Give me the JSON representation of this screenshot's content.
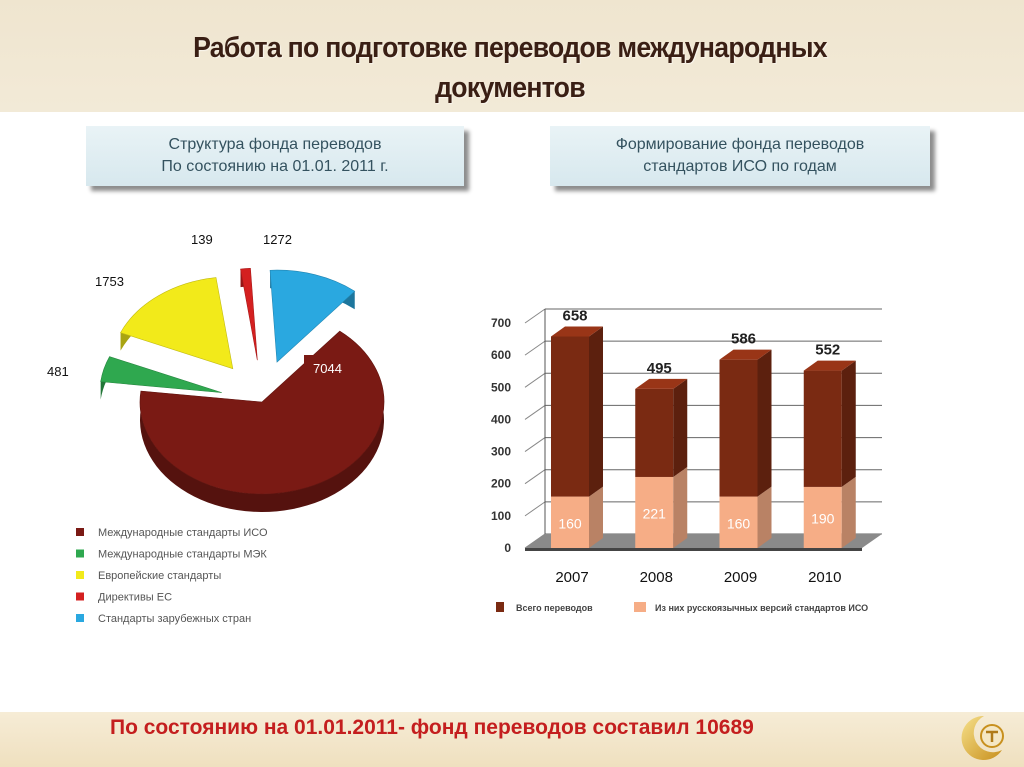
{
  "title": "Работа по подготовке переводов международных документов",
  "left_caption": {
    "line1": "Структура фонда переводов",
    "line2": "По состоянию на 01.01. 2011 г."
  },
  "right_caption": {
    "line1": "Формирование фонда переводов",
    "line2": "стандартов ИСО по годам"
  },
  "footer_text": "По состоянию на 01.01.2011- фонд переводов составил 10689",
  "colors": {
    "iso": "#7a1a14",
    "iec": "#2fa84f",
    "european": "#f2ea1a",
    "ec": "#d42020",
    "foreign": "#2aa8e0",
    "bar_total": "#7a2a12",
    "bar_russian": "#f6ad86",
    "footer_red": "#c41e1e"
  },
  "chart_data": [
    {
      "type": "pie",
      "labels": [
        "Международные стандарты ИСО",
        "Международные стандарты МЭК",
        "Европейские стандарты",
        "Директивы ЕС",
        "Стандарты зарубежных стран"
      ],
      "values": [
        7044,
        481,
        1753,
        139,
        1272
      ],
      "value_labels": [
        "7044",
        "481",
        "1753",
        "139",
        "1272"
      ],
      "legend_position": "bottom-left"
    },
    {
      "type": "bar",
      "categories": [
        "2007",
        "2008",
        "2009",
        "2010"
      ],
      "series": [
        {
          "name": "Всего переводов",
          "values": [
            658,
            495,
            586,
            552
          ]
        },
        {
          "name": "Из них русскоязычных версий стандартов ИСО",
          "values": [
            160,
            221,
            160,
            190
          ]
        }
      ],
      "total_labels": [
        "658",
        "495",
        "586",
        "552"
      ],
      "russian_labels": [
        "160",
        "221",
        "160",
        "190"
      ],
      "yticks": [
        "0",
        "100",
        "200",
        "300",
        "400",
        "500",
        "600",
        "700"
      ],
      "ylim": [
        0,
        700
      ],
      "grid": true,
      "legend_position": "bottom"
    }
  ]
}
